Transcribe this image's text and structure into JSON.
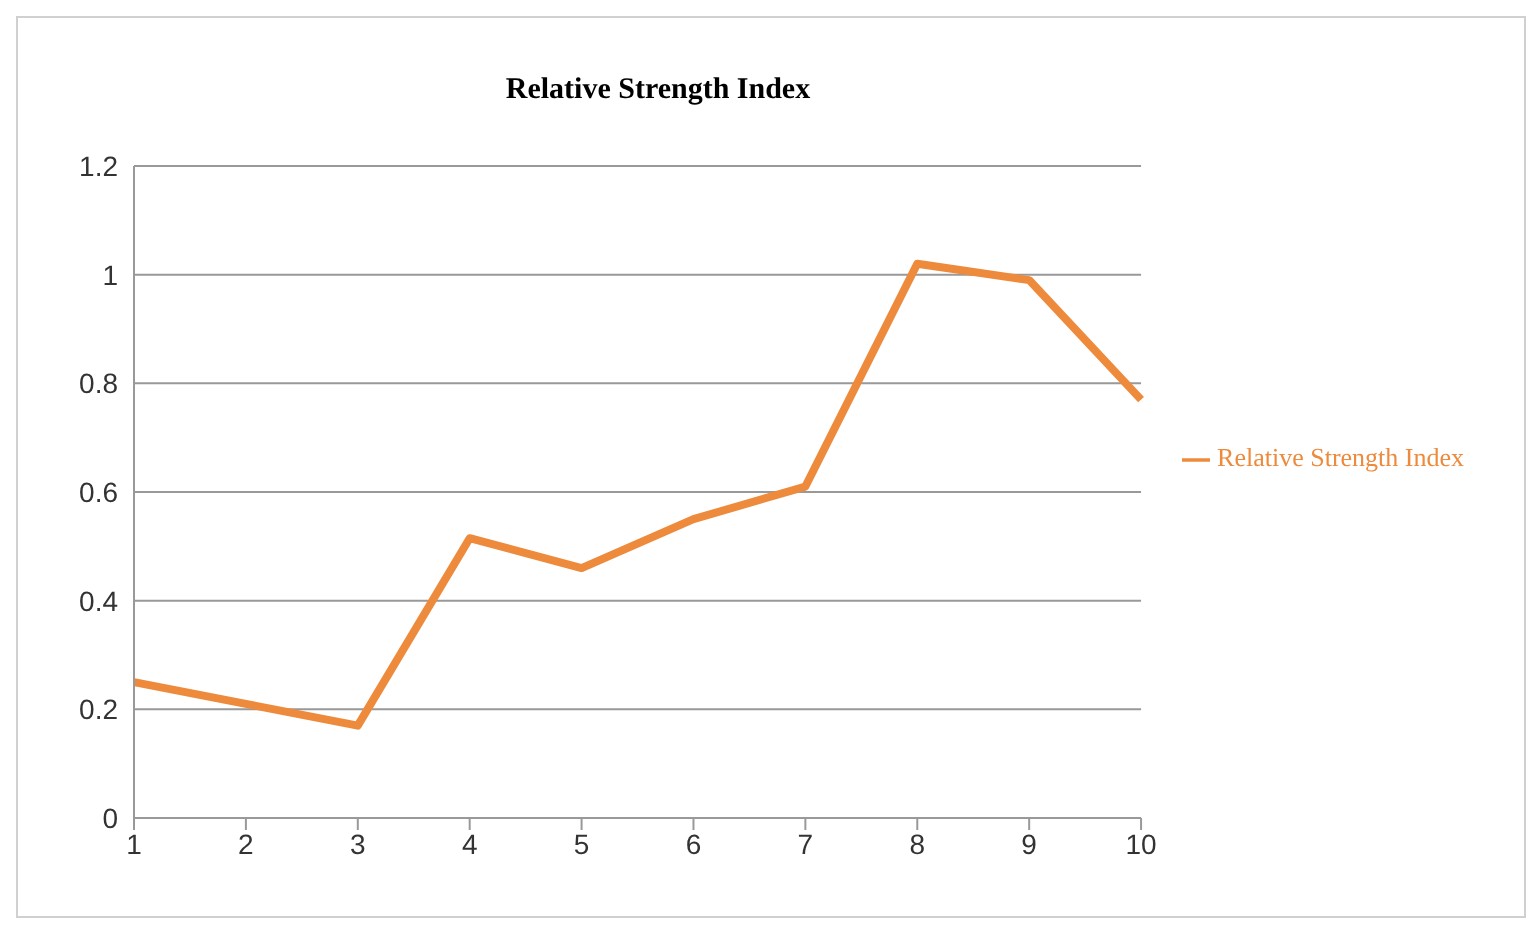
{
  "chart_data": {
    "type": "line",
    "title": "Relative Strength Index",
    "categories": [
      "1",
      "2",
      "3",
      "4",
      "5",
      "6",
      "7",
      "8",
      "9",
      "10"
    ],
    "series": [
      {
        "name": "Relative Strength Index",
        "color": "#ed8a3c",
        "values": [
          0.25,
          0.21,
          0.17,
          0.515,
          0.46,
          0.55,
          0.61,
          1.02,
          0.99,
          0.77
        ]
      }
    ],
    "ylim": [
      0,
      1.2
    ],
    "yticks": [
      0,
      0.2,
      0.4,
      0.6,
      0.8,
      1,
      1.2
    ],
    "grid": "y",
    "legend": "right",
    "marker": "none",
    "line_style": "solid"
  }
}
